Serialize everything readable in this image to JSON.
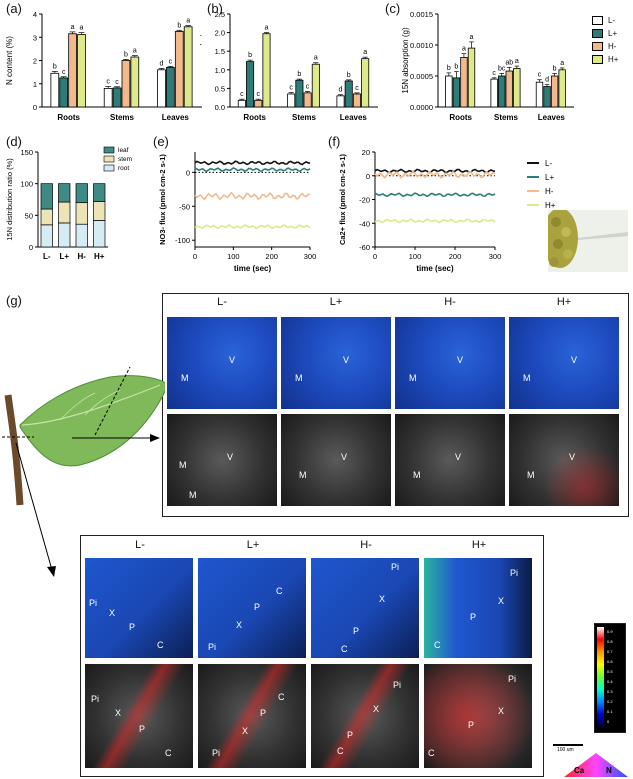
{
  "panels": {
    "a": "(a)",
    "b": "(b)",
    "c": "(c)",
    "d": "(d)",
    "e": "(e)",
    "f": "(f)",
    "g": "(g)"
  },
  "colors": {
    "L-": "#ffffff",
    "L+": "#2e7c78",
    "H-": "#f2b98c",
    "H+": "#dde98a",
    "root": "#d6ecf5",
    "stem": "#ece4b6",
    "leaf": "#3f8a84"
  },
  "legend": {
    "treatments": [
      "L-",
      "L+",
      "H-",
      "H+"
    ]
  },
  "chart_data": [
    {
      "id": "a",
      "type": "bar",
      "ylabel": "N content (%)",
      "ylim": [
        0,
        4
      ],
      "yticks": [
        "0",
        "1",
        "2",
        "3",
        "4"
      ],
      "categories": [
        "Roots",
        "Stems",
        "Leaves"
      ],
      "series": [
        {
          "name": "L-",
          "values": [
            1.45,
            0.8,
            1.6
          ],
          "errors": [
            0.08,
            0.08,
            0.06
          ]
        },
        {
          "name": "L+",
          "values": [
            1.25,
            0.82,
            1.7
          ],
          "errors": [
            0.05,
            0.05,
            0.05
          ]
        },
        {
          "name": "H-",
          "values": [
            3.15,
            2.0,
            3.25
          ],
          "errors": [
            0.08,
            0.05,
            0.05
          ]
        },
        {
          "name": "H+",
          "values": [
            3.12,
            2.15,
            3.45
          ],
          "errors": [
            0.08,
            0.06,
            0.05
          ]
        }
      ],
      "letters": [
        [
          "b",
          "c",
          "a",
          "a"
        ],
        [
          "c",
          "c",
          "b",
          "a"
        ],
        [
          "d",
          "c",
          "b",
          "a"
        ]
      ]
    },
    {
      "id": "b",
      "type": "bar",
      "ylabel": "Ca content (%)",
      "ylim": [
        0,
        2.5
      ],
      "yticks": [
        "0.0",
        "0.5",
        "1.0",
        "1.5",
        "2.0",
        "2.5"
      ],
      "categories": [
        "Roots",
        "Stems",
        "Leaves"
      ],
      "series": [
        {
          "name": "L-",
          "values": [
            0.18,
            0.35,
            0.3
          ],
          "errors": [
            0.03,
            0.04,
            0.03
          ]
        },
        {
          "name": "L+",
          "values": [
            1.22,
            0.72,
            0.7
          ],
          "errors": [
            0.04,
            0.03,
            0.03
          ]
        },
        {
          "name": "H-",
          "values": [
            0.18,
            0.38,
            0.35
          ],
          "errors": [
            0.03,
            0.04,
            0.03
          ]
        },
        {
          "name": "H+",
          "values": [
            1.97,
            1.15,
            1.3
          ],
          "errors": [
            0.03,
            0.04,
            0.04
          ]
        }
      ],
      "letters": [
        [
          "c",
          "b",
          "c",
          "a"
        ],
        [
          "c",
          "b",
          "c",
          "a"
        ],
        [
          "d",
          "b",
          "c",
          "a"
        ]
      ]
    },
    {
      "id": "c",
      "type": "bar",
      "ylabel": "15N absorption (g)",
      "ylim": [
        0,
        0.0015
      ],
      "yticks": [
        "0.0000",
        "0.0005",
        "0.0010",
        "0.0015"
      ],
      "categories": [
        "Roots",
        "Stems",
        "Leaves"
      ],
      "series": [
        {
          "name": "L-",
          "values": [
            0.0005,
            0.00045,
            0.0004
          ],
          "errors": [
            5e-05,
            2e-05,
            4e-05
          ]
        },
        {
          "name": "L+",
          "values": [
            0.00047,
            0.0005,
            0.00033
          ],
          "errors": [
            0.0001,
            4e-05,
            3e-05
          ]
        },
        {
          "name": "H-",
          "values": [
            0.0008,
            0.00058,
            0.0005
          ],
          "errors": [
            6e-05,
            6e-05,
            4e-05
          ]
        },
        {
          "name": "H+",
          "values": [
            0.00095,
            0.00062,
            0.0006
          ],
          "errors": [
            0.0001,
            4e-05,
            3e-05
          ]
        }
      ],
      "letters": [
        [
          "b",
          "b",
          "a",
          "a"
        ],
        [
          "c",
          "bc",
          "ab",
          "a"
        ],
        [
          "c",
          "d",
          "b",
          "a"
        ]
      ]
    },
    {
      "id": "d",
      "type": "bar",
      "stacked": true,
      "ylabel": "15N distribution ratio (%)",
      "ylim": [
        0,
        150
      ],
      "yticks": [
        "0",
        "50",
        "100",
        "150"
      ],
      "categories": [
        "L-",
        "L+",
        "H-",
        "H+"
      ],
      "series": [
        {
          "name": "root",
          "values": [
            35,
            38,
            36,
            42
          ]
        },
        {
          "name": "stem",
          "values": [
            25,
            33,
            34,
            30
          ]
        },
        {
          "name": "leaf",
          "values": [
            40,
            29,
            30,
            28
          ]
        }
      ]
    },
    {
      "id": "e",
      "type": "line",
      "ylabel": "NO3- flux (pmol cm-2 s-1)",
      "xlabel": "time (sec)",
      "xlim": [
        0,
        300
      ],
      "ylim": [
        -110,
        30
      ],
      "xticks": [
        "0",
        "100",
        "200",
        "300"
      ],
      "yticks": [
        "-100",
        "-50",
        "0"
      ],
      "series": [
        {
          "name": "L-",
          "x": [
            0,
            300
          ],
          "values": [
            14,
            14
          ]
        },
        {
          "name": "L+",
          "x": [
            0,
            300
          ],
          "values": [
            4,
            4
          ]
        },
        {
          "name": "H-",
          "x": [
            0,
            300
          ],
          "values": [
            -35,
            -35
          ]
        },
        {
          "name": "H+",
          "x": [
            0,
            300
          ],
          "values": [
            -80,
            -80
          ]
        }
      ]
    },
    {
      "id": "f",
      "type": "line",
      "ylabel": "Ca2+ flux (pmol cm-2 s-1)",
      "xlabel": "time (sec)",
      "xlim": [
        0,
        300
      ],
      "ylim": [
        -60,
        20
      ],
      "xticks": [
        "0",
        "100",
        "200",
        "300"
      ],
      "yticks": [
        "-60",
        "-40",
        "-20",
        "0",
        "20"
      ],
      "series": [
        {
          "name": "L-",
          "x": [
            0,
            300
          ],
          "values": [
            4,
            4
          ]
        },
        {
          "name": "L+",
          "x": [
            0,
            300
          ],
          "values": [
            -16,
            -16
          ]
        },
        {
          "name": "H-",
          "x": [
            0,
            300
          ],
          "values": [
            1,
            1
          ]
        },
        {
          "name": "H+",
          "x": [
            0,
            300
          ],
          "values": [
            -38,
            -38
          ]
        }
      ]
    }
  ],
  "micrographs": {
    "headers": [
      "L-",
      "L+",
      "H-",
      "H+"
    ],
    "leaf_row1": [
      [
        "V",
        "M"
      ],
      [
        "V",
        "M"
      ],
      [
        "V",
        "M"
      ],
      [
        "V",
        "M"
      ]
    ],
    "leaf_row2": [
      [
        "V",
        "M",
        "M"
      ],
      [
        "V",
        "M"
      ],
      [
        "V",
        "M"
      ],
      [
        "V",
        "M"
      ]
    ],
    "stem_row1": [
      [
        "Pi",
        "X",
        "P",
        "C"
      ],
      [
        "C",
        "P",
        "X",
        "Pi"
      ],
      [
        "Pi",
        "X",
        "P",
        "C"
      ],
      [
        "Pi",
        "X",
        "P",
        "C"
      ]
    ],
    "stem_row2": [
      [
        "Pi",
        "X",
        "P",
        "C"
      ],
      [
        "C",
        "P",
        "X",
        "Pi"
      ],
      [
        "Pi",
        "X",
        "P",
        "C"
      ],
      [
        "Pi",
        "X",
        "P",
        "C"
      ]
    ],
    "scale_bar": "100 um",
    "color_scale": [
      "0.9",
      "0.8",
      "0.7",
      "0.6",
      "0.5",
      "0.4",
      "0.3",
      "0.2",
      "0.1",
      "0"
    ],
    "ternary_labels": [
      "Ca",
      "N"
    ]
  }
}
